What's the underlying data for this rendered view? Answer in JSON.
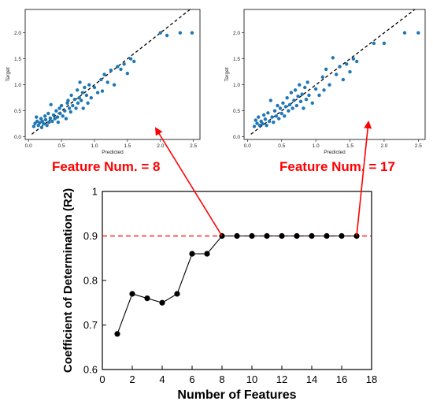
{
  "chart_data": [
    {
      "type": "scatter",
      "xlabel": "Predicted",
      "ylabel": "Target",
      "xlim": [
        -0.05,
        2.6
      ],
      "ylim": [
        -0.05,
        2.45
      ],
      "xticks": [
        "0.0",
        "0.5",
        "1.0",
        "1.5",
        "2.0",
        "2.5"
      ],
      "yticks": [
        "0.0",
        "0.5",
        "1.0",
        "1.5",
        "2.0"
      ],
      "identity_line": [
        [
          0.05,
          0.05
        ],
        [
          2.45,
          2.45
        ]
      ],
      "point_color": "#1f77b4",
      "points": [
        [
          0.08,
          0.2
        ],
        [
          0.1,
          0.26
        ],
        [
          0.12,
          0.38
        ],
        [
          0.13,
          0.3
        ],
        [
          0.15,
          0.22
        ],
        [
          0.17,
          0.27
        ],
        [
          0.19,
          0.35
        ],
        [
          0.2,
          0.18
        ],
        [
          0.21,
          0.3
        ],
        [
          0.23,
          0.25
        ],
        [
          0.25,
          0.4
        ],
        [
          0.26,
          0.33
        ],
        [
          0.28,
          0.22
        ],
        [
          0.3,
          0.45
        ],
        [
          0.31,
          0.28
        ],
        [
          0.33,
          0.36
        ],
        [
          0.34,
          0.62
        ],
        [
          0.36,
          0.3
        ],
        [
          0.38,
          0.42
        ],
        [
          0.4,
          0.35
        ],
        [
          0.42,
          0.5
        ],
        [
          0.44,
          0.38
        ],
        [
          0.45,
          0.28
        ],
        [
          0.47,
          0.55
        ],
        [
          0.48,
          0.45
        ],
        [
          0.5,
          0.6
        ],
        [
          0.52,
          0.4
        ],
        [
          0.55,
          0.5
        ],
        [
          0.57,
          0.35
        ],
        [
          0.59,
          0.65
        ],
        [
          0.6,
          0.7
        ],
        [
          0.62,
          0.55
        ],
        [
          0.64,
          0.48
        ],
        [
          0.65,
          0.8
        ],
        [
          0.67,
          0.6
        ],
        [
          0.7,
          0.72
        ],
        [
          0.72,
          0.55
        ],
        [
          0.74,
          0.9
        ],
        [
          0.75,
          0.65
        ],
        [
          0.77,
          0.75
        ],
        [
          0.78,
          1.05
        ],
        [
          0.8,
          0.7
        ],
        [
          0.82,
          0.85
        ],
        [
          0.83,
          0.55
        ],
        [
          0.85,
          0.95
        ],
        [
          0.88,
          0.8
        ],
        [
          0.9,
          0.65
        ],
        [
          0.92,
          1.0
        ],
        [
          0.95,
          0.75
        ],
        [
          1.0,
          0.95
        ],
        [
          1.05,
          0.85
        ],
        [
          1.1,
          1.1
        ],
        [
          1.12,
          0.88
        ],
        [
          1.15,
          1.2
        ],
        [
          1.2,
          1.05
        ],
        [
          1.25,
          1.28
        ],
        [
          1.3,
          1.0
        ],
        [
          1.35,
          1.35
        ],
        [
          1.4,
          1.3
        ],
        [
          1.45,
          1.4
        ],
        [
          1.5,
          1.22
        ],
        [
          1.55,
          1.5
        ],
        [
          1.6,
          1.45
        ],
        [
          2.0,
          2.0
        ],
        [
          2.1,
          1.95
        ],
        [
          2.3,
          2.0
        ],
        [
          2.48,
          2.0
        ]
      ]
    },
    {
      "type": "scatter",
      "xlabel": "Predicted",
      "ylabel": "Target",
      "xlim": [
        -0.05,
        2.6
      ],
      "ylim": [
        -0.05,
        2.45
      ],
      "xticks": [
        "0.0",
        "0.5",
        "1.0",
        "1.5",
        "2.0",
        "2.5"
      ],
      "yticks": [
        "0.0",
        "0.5",
        "1.0",
        "1.5",
        "2.0"
      ],
      "identity_line": [
        [
          0.05,
          0.05
        ],
        [
          2.45,
          2.45
        ]
      ],
      "point_color": "#1f77b4",
      "points": [
        [
          0.1,
          0.2
        ],
        [
          0.12,
          0.32
        ],
        [
          0.14,
          0.26
        ],
        [
          0.16,
          0.38
        ],
        [
          0.18,
          0.22
        ],
        [
          0.2,
          0.3
        ],
        [
          0.22,
          0.25
        ],
        [
          0.24,
          0.42
        ],
        [
          0.26,
          0.34
        ],
        [
          0.28,
          0.22
        ],
        [
          0.3,
          0.46
        ],
        [
          0.32,
          0.3
        ],
        [
          0.34,
          0.7
        ],
        [
          0.36,
          0.38
        ],
        [
          0.38,
          0.28
        ],
        [
          0.4,
          0.5
        ],
        [
          0.42,
          0.4
        ],
        [
          0.44,
          0.6
        ],
        [
          0.46,
          0.35
        ],
        [
          0.48,
          0.55
        ],
        [
          0.5,
          0.45
        ],
        [
          0.52,
          0.65
        ],
        [
          0.54,
          0.4
        ],
        [
          0.56,
          0.58
        ],
        [
          0.58,
          0.75
        ],
        [
          0.6,
          0.5
        ],
        [
          0.62,
          0.62
        ],
        [
          0.64,
          0.85
        ],
        [
          0.66,
          0.55
        ],
        [
          0.68,
          0.7
        ],
        [
          0.7,
          0.9
        ],
        [
          0.72,
          0.6
        ],
        [
          0.74,
          0.78
        ],
        [
          0.76,
          1.0
        ],
        [
          0.78,
          0.68
        ],
        [
          0.8,
          0.82
        ],
        [
          0.82,
          0.55
        ],
        [
          0.84,
          0.95
        ],
        [
          0.86,
          0.72
        ],
        [
          0.88,
          1.05
        ],
        [
          0.9,
          0.8
        ],
        [
          0.95,
          0.65
        ],
        [
          1.0,
          0.92
        ],
        [
          1.05,
          0.8
        ],
        [
          1.1,
          1.15
        ],
        [
          1.12,
          0.9
        ],
        [
          1.15,
          1.3
        ],
        [
          1.2,
          1.0
        ],
        [
          1.25,
          1.52
        ],
        [
          1.3,
          1.2
        ],
        [
          1.35,
          1.35
        ],
        [
          1.4,
          1.1
        ],
        [
          1.45,
          1.4
        ],
        [
          1.5,
          1.25
        ],
        [
          1.55,
          1.5
        ],
        [
          1.6,
          1.45
        ],
        [
          1.85,
          1.8
        ],
        [
          2.0,
          1.8
        ],
        [
          2.3,
          2.0
        ],
        [
          2.5,
          2.0
        ]
      ]
    },
    {
      "type": "line",
      "xlabel": "Number of Features",
      "ylabel": "Coefficient of Determination (R2)",
      "xlim": [
        0,
        18
      ],
      "ylim": [
        0.6,
        1.0
      ],
      "xticks": [
        "0",
        "2",
        "4",
        "6",
        "8",
        "10",
        "12",
        "14",
        "16",
        "18"
      ],
      "yticks": [
        "0.6",
        "0.7",
        "0.8",
        "0.9",
        "1"
      ],
      "x": [
        1,
        2,
        3,
        4,
        5,
        6,
        7,
        8,
        9,
        10,
        11,
        12,
        13,
        14,
        15,
        16,
        17
      ],
      "y": [
        0.68,
        0.77,
        0.76,
        0.75,
        0.77,
        0.86,
        0.86,
        0.9,
        0.9,
        0.9,
        0.9,
        0.9,
        0.9,
        0.9,
        0.9,
        0.9,
        0.9
      ],
      "reference_line": 0.9,
      "line_color": "#000000",
      "reference_color": "#ff0000"
    }
  ],
  "annotations": [
    {
      "text": "Feature Num. = 8",
      "from_x": 8,
      "from_y": 0.9,
      "to_plot": 0
    },
    {
      "text": "Feature Num. = 17",
      "from_x": 17,
      "from_y": 0.9,
      "to_plot": 1
    }
  ],
  "annotation_color": "#ff0000"
}
